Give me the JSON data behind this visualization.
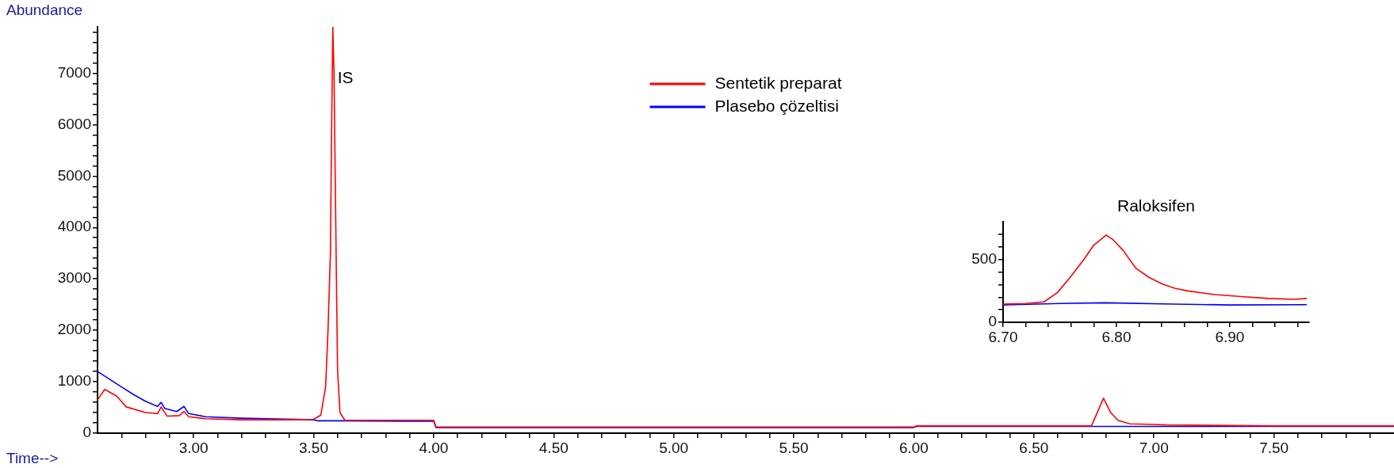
{
  "chart_data": [
    {
      "type": "line",
      "xlabel": "Time-->",
      "ylabel": "Abundance",
      "legend": "top",
      "annotations": [
        {
          "text": "IS",
          "x": 3.6,
          "y": 6900
        }
      ],
      "xlim": [
        2.6,
        8.0
      ],
      "ylim": [
        0,
        7900
      ],
      "xticks": [
        {
          "value": 2.7,
          "label": null
        },
        {
          "value": 2.8,
          "label": null
        },
        {
          "value": 2.9,
          "label": null
        },
        {
          "value": 3,
          "label": "3.00"
        },
        {
          "value": 3.1,
          "label": null
        },
        {
          "value": 3.2,
          "label": null
        },
        {
          "value": 3.3,
          "label": null
        },
        {
          "value": 3.4,
          "label": null
        },
        {
          "value": 3.5,
          "label": "3.50"
        },
        {
          "value": 3.6,
          "label": null
        },
        {
          "value": 3.7,
          "label": null
        },
        {
          "value": 3.8,
          "label": null
        },
        {
          "value": 3.9,
          "label": null
        },
        {
          "value": 4,
          "label": "4.00"
        },
        {
          "value": 4.1,
          "label": null
        },
        {
          "value": 4.2,
          "label": null
        },
        {
          "value": 4.3,
          "label": null
        },
        {
          "value": 4.4,
          "label": null
        },
        {
          "value": 4.5,
          "label": "4.50"
        },
        {
          "value": 4.6,
          "label": null
        },
        {
          "value": 4.7,
          "label": null
        },
        {
          "value": 4.8,
          "label": null
        },
        {
          "value": 4.9,
          "label": null
        },
        {
          "value": 5,
          "label": "5.00"
        },
        {
          "value": 5.1,
          "label": null
        },
        {
          "value": 5.2,
          "label": null
        },
        {
          "value": 5.3,
          "label": null
        },
        {
          "value": 5.4,
          "label": null
        },
        {
          "value": 5.5,
          "label": "5.50"
        },
        {
          "value": 5.6,
          "label": null
        },
        {
          "value": 5.7,
          "label": null
        },
        {
          "value": 5.8,
          "label": null
        },
        {
          "value": 5.9,
          "label": null
        },
        {
          "value": 6,
          "label": "6.00"
        },
        {
          "value": 6.1,
          "label": null
        },
        {
          "value": 6.2,
          "label": null
        },
        {
          "value": 6.3,
          "label": null
        },
        {
          "value": 6.4,
          "label": null
        },
        {
          "value": 6.5,
          "label": "6.50"
        },
        {
          "value": 6.6,
          "label": null
        },
        {
          "value": 6.7,
          "label": null
        },
        {
          "value": 6.8,
          "label": null
        },
        {
          "value": 6.9,
          "label": null
        },
        {
          "value": 7,
          "label": "7.00"
        },
        {
          "value": 7.1,
          "label": null
        },
        {
          "value": 7.2,
          "label": null
        },
        {
          "value": 7.3,
          "label": null
        },
        {
          "value": 7.4,
          "label": null
        },
        {
          "value": 7.5,
          "label": "7.50"
        },
        {
          "value": 7.6,
          "label": null
        },
        {
          "value": 7.7,
          "label": null
        },
        {
          "value": 7.8,
          "label": null
        },
        {
          "value": 7.9,
          "label": null
        }
      ],
      "yticks": [
        0,
        {
          "value": 200,
          "label": null
        },
        {
          "value": 400,
          "label": null
        },
        {
          "value": 600,
          "label": null
        },
        {
          "value": 800,
          "label": null
        },
        1000,
        {
          "value": 1200,
          "label": null
        },
        {
          "value": 1400,
          "label": null
        },
        {
          "value": 1600,
          "label": null
        },
        {
          "value": 1800,
          "label": null
        },
        2000,
        {
          "value": 2200,
          "label": null
        },
        {
          "value": 2400,
          "label": null
        },
        {
          "value": 2600,
          "label": null
        },
        {
          "value": 2800,
          "label": null
        },
        3000,
        {
          "value": 3200,
          "label": null
        },
        {
          "value": 3400,
          "label": null
        },
        {
          "value": 3600,
          "label": null
        },
        {
          "value": 3800,
          "label": null
        },
        4000,
        {
          "value": 4200,
          "label": null
        },
        {
          "value": 4400,
          "label": null
        },
        {
          "value": 4600,
          "label": null
        },
        {
          "value": 4800,
          "label": null
        },
        5000,
        {
          "value": 5200,
          "label": null
        },
        {
          "value": 5400,
          "label": null
        },
        {
          "value": 5600,
          "label": null
        },
        {
          "value": 5800,
          "label": null
        },
        6000,
        {
          "value": 6200,
          "label": null
        },
        {
          "value": 6400,
          "label": null
        },
        {
          "value": 6600,
          "label": null
        },
        {
          "value": 6800,
          "label": null
        },
        7000,
        {
          "value": 7200,
          "label": null
        },
        {
          "value": 7400,
          "label": null
        },
        {
          "value": 7600,
          "label": null
        },
        {
          "value": 7800,
          "label": null
        }
      ],
      "series": [
        {
          "name": "Sentetik preparat",
          "color": "#ff0000",
          "x": [
            2.6,
            2.63,
            2.68,
            2.72,
            2.8,
            2.85,
            2.865,
            2.89,
            2.94,
            2.96,
            2.98,
            3.05,
            3.2,
            3.4,
            3.5,
            3.53,
            3.55,
            3.56,
            3.57,
            3.575,
            3.58,
            3.585,
            3.59,
            3.595,
            3.6,
            3.61,
            3.63,
            3.7,
            4.0,
            4.01,
            6.0,
            6.01,
            6.74,
            6.79,
            6.82,
            6.85,
            6.9,
            7.0,
            7.05,
            7.5,
            8.0
          ],
          "values": [
            650,
            850,
            720,
            510,
            400,
            380,
            510,
            330,
            340,
            420,
            320,
            280,
            260,
            260,
            270,
            350,
            900,
            2000,
            3500,
            5900,
            7900,
            7000,
            5000,
            3000,
            1200,
            400,
            250,
            250,
            250,
            120,
            120,
            140,
            140,
            680,
            400,
            250,
            180,
            170,
            160,
            140,
            140
          ]
        },
        {
          "name": "Plasebo çözeltisi",
          "color": "#0000ff",
          "x": [
            2.6,
            2.65,
            2.7,
            2.75,
            2.8,
            2.85,
            2.865,
            2.88,
            2.93,
            2.96,
            2.98,
            3.05,
            3.2,
            3.5,
            3.52,
            3.6,
            4.0,
            4.01,
            6.0,
            6.01,
            8.0
          ],
          "values": [
            1200,
            1050,
            900,
            750,
            620,
            520,
            600,
            480,
            420,
            520,
            380,
            320,
            290,
            260,
            240,
            240,
            230,
            110,
            110,
            130,
            130
          ]
        }
      ]
    },
    {
      "type": "line",
      "title": "Raloksifen",
      "xlim": [
        6.7,
        6.97
      ],
      "ylim": [
        0,
        800
      ],
      "xticks": [
        {
          "value": 6.7,
          "label": "6.70"
        },
        {
          "value": 6.72,
          "label": null
        },
        {
          "value": 6.74,
          "label": null
        },
        {
          "value": 6.76,
          "label": null
        },
        {
          "value": 6.78,
          "label": null
        },
        {
          "value": 6.8,
          "label": "6.80"
        },
        {
          "value": 6.82,
          "label": null
        },
        {
          "value": 6.84,
          "label": null
        },
        {
          "value": 6.86,
          "label": null
        },
        {
          "value": 6.88,
          "label": null
        },
        {
          "value": 6.9,
          "label": "6.90"
        },
        {
          "value": 6.92,
          "label": null
        },
        {
          "value": 6.94,
          "label": null
        },
        {
          "value": 6.96,
          "label": null
        }
      ],
      "yticks": [
        0,
        {
          "value": 100,
          "label": null
        },
        {
          "value": 200,
          "label": null
        },
        {
          "value": 300,
          "label": null
        },
        {
          "value": 400,
          "label": null
        },
        500,
        {
          "value": 600,
          "label": null
        },
        {
          "value": 700,
          "label": null
        }
      ],
      "series": [
        {
          "color": "#ff0000",
          "x": [
            6.7,
            6.72,
            6.736,
            6.748,
            6.759,
            6.771,
            6.78,
            6.791,
            6.797,
            6.806,
            6.817,
            6.829,
            6.841,
            6.852,
            6.864,
            6.887,
            6.91,
            6.934,
            6.957,
            6.968
          ],
          "values": [
            145,
            150,
            162,
            237,
            356,
            496,
            614,
            694,
            657,
            571,
            431,
            356,
            302,
            269,
            248,
            220,
            205,
            190,
            183,
            190
          ]
        },
        {
          "color": "#0000ff",
          "x": [
            6.7,
            6.75,
            6.79,
            6.85,
            6.9,
            6.968
          ],
          "values": [
            138,
            150,
            155,
            145,
            138,
            140
          ]
        }
      ]
    }
  ]
}
